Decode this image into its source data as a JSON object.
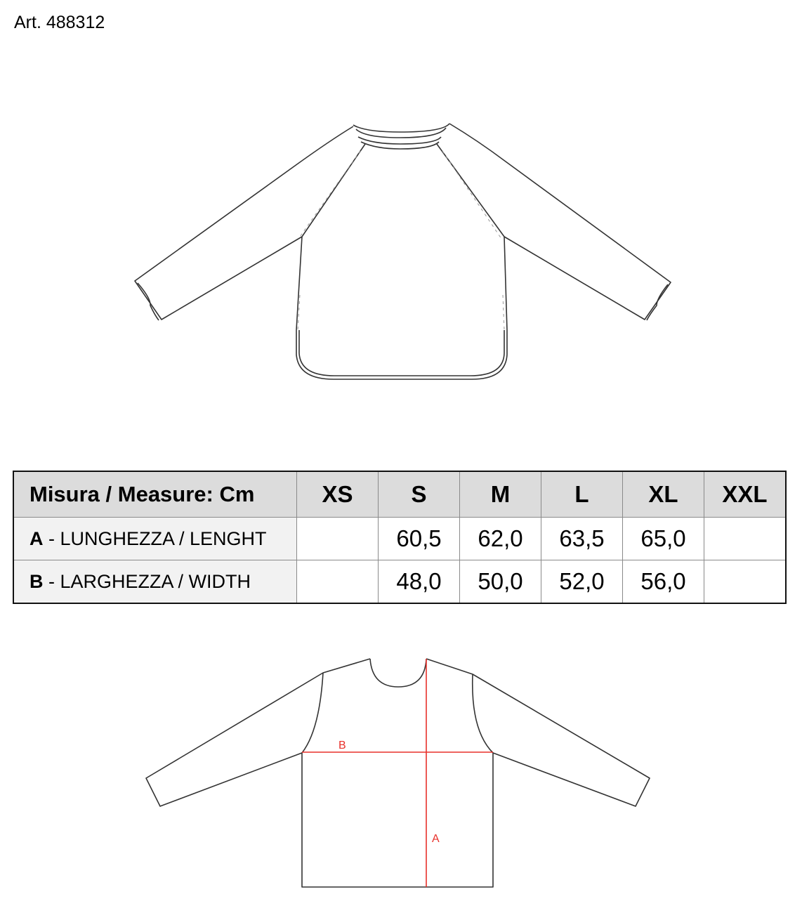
{
  "article": "Art. 488312",
  "table": {
    "header": "Misura / Measure: Cm",
    "sizes": [
      "XS",
      "S",
      "M",
      "L",
      "XL",
      "XXL"
    ],
    "rows": [
      {
        "key": "A",
        "label": " - LUNGHEZZA / LENGHT",
        "values": [
          "",
          "60,5",
          "62,0",
          "63,5",
          "65,0",
          ""
        ]
      },
      {
        "key": "B",
        "label": " - LARGHEZZA / WIDTH",
        "values": [
          "",
          "48,0",
          "50,0",
          "52,0",
          "56,0",
          ""
        ]
      }
    ]
  },
  "diagram": {
    "label_a": "A",
    "label_b": "B",
    "measure_color": "#e8302a"
  }
}
